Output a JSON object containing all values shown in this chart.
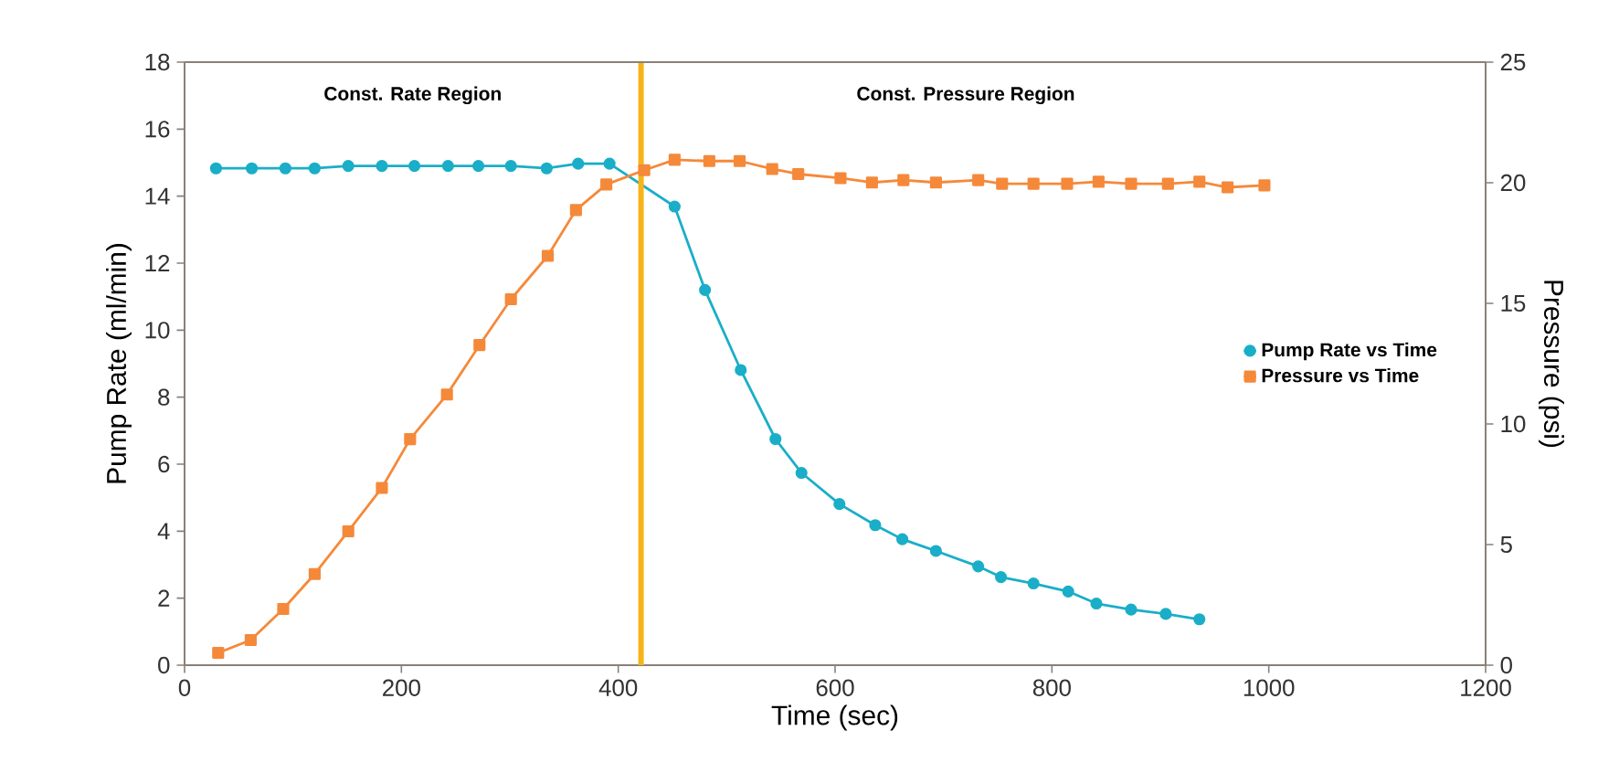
{
  "chart_data": {
    "type": "line",
    "xlabel": "Time (sec)",
    "ylabel": "Pump Rate (ml/min)",
    "y2label": "Pressure (psi)",
    "xlim": [
      0,
      1200
    ],
    "xticks": [
      0,
      200,
      400,
      600,
      800,
      1000,
      1200
    ],
    "ylim": [
      0,
      18
    ],
    "yticks": [
      0,
      2,
      4,
      6,
      8,
      10,
      12,
      14,
      16,
      18
    ],
    "y2lim": [
      0,
      25
    ],
    "y2ticks": [
      0,
      5,
      10,
      15,
      20,
      25
    ],
    "legend": "right",
    "grid": false,
    "annotations": [
      "Const. Rate Region",
      "Const. Pressure Region"
    ],
    "ref_lines": [
      {
        "axis": "x",
        "value": 421,
        "color": "#f7b418"
      }
    ],
    "series": [
      {
        "name": "Pump Rate vs Time",
        "color": "#1aaec8",
        "marker": "circle",
        "x": [
          29,
          62,
          93,
          120,
          151,
          182,
          212,
          243,
          271,
          301,
          334,
          363,
          392,
          452,
          480,
          513,
          545,
          569,
          604,
          637,
          662,
          693,
          732,
          753,
          783,
          815,
          841,
          873,
          905,
          936
        ],
        "values": [
          14.83,
          14.83,
          14.83,
          14.83,
          14.9,
          14.9,
          14.9,
          14.9,
          14.9,
          14.9,
          14.83,
          14.97,
          14.97,
          13.69,
          11.2,
          8.81,
          6.75,
          5.74,
          4.81,
          4.18,
          3.76,
          3.41,
          2.95,
          2.63,
          2.44,
          2.2,
          1.84,
          1.66,
          1.53,
          1.37
        ]
      },
      {
        "name": "Pressure vs Time",
        "color": "#f5893a",
        "marker": "square",
        "axis": "y2",
        "x": [
          31,
          61,
          91,
          120,
          151,
          182,
          208,
          242,
          272,
          301,
          335,
          361,
          389,
          424,
          452,
          484,
          512,
          542,
          566,
          605,
          634,
          663,
          693,
          732,
          754,
          783,
          814,
          843,
          873,
          907,
          936,
          962,
          996
        ],
        "values": [
          0.51,
          1.04,
          2.33,
          3.78,
          5.55,
          7.35,
          9.37,
          11.22,
          13.27,
          15.17,
          16.97,
          18.87,
          19.93,
          20.52,
          20.95,
          20.9,
          20.9,
          20.57,
          20.36,
          20.19,
          20.01,
          20.11,
          20.01,
          20.11,
          19.96,
          19.96,
          19.96,
          20.04,
          19.96,
          19.96,
          20.04,
          19.81,
          19.89
        ]
      }
    ]
  }
}
